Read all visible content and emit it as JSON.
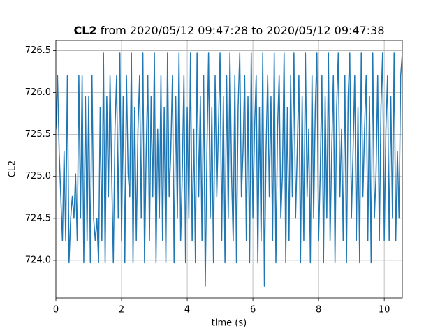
{
  "chart_data": {
    "type": "line",
    "title_parts": [
      "CL2",
      "from 2020/05/12 09:47:28 to 2020/05/12 09:47:38"
    ],
    "x_label": "time (s)",
    "y_label": "CL2",
    "color": "#1f77b4",
    "grid": true,
    "xlim": [
      0,
      10.55
    ],
    "xticks": [
      0,
      2,
      4,
      6,
      8,
      10
    ],
    "ylim": [
      723.55,
      726.62
    ],
    "yticks": [
      {
        "value": 724,
        "label": "724.0"
      },
      {
        "value": 724.5,
        "label": "724.5"
      },
      {
        "value": 725,
        "label": "725.0"
      },
      {
        "value": 725.5,
        "label": "725.5"
      },
      {
        "value": 726,
        "label": "726.0"
      },
      {
        "value": 726.5,
        "label": "726.5"
      }
    ],
    "x": [
      0,
      0.05,
      0.1,
      0.15,
      0.2,
      0.25,
      0.3,
      0.35,
      0.4,
      0.45,
      0.5,
      0.55,
      0.6,
      0.65,
      0.7,
      0.75,
      0.8,
      0.85,
      0.9,
      0.95,
      1,
      1.05,
      1.1,
      1.15,
      1.2,
      1.25,
      1.3,
      1.35,
      1.4,
      1.45,
      1.5,
      1.55,
      1.6,
      1.65,
      1.7,
      1.75,
      1.8,
      1.85,
      1.9,
      1.95,
      2,
      2.05,
      2.1,
      2.15,
      2.2,
      2.25,
      2.3,
      2.35,
      2.4,
      2.45,
      2.5,
      2.55,
      2.6,
      2.65,
      2.7,
      2.75,
      2.8,
      2.85,
      2.9,
      2.95,
      3,
      3.05,
      3.1,
      3.15,
      3.2,
      3.25,
      3.3,
      3.35,
      3.4,
      3.45,
      3.5,
      3.55,
      3.6,
      3.65,
      3.7,
      3.75,
      3.8,
      3.85,
      3.9,
      3.95,
      4,
      4.05,
      4.1,
      4.15,
      4.2,
      4.25,
      4.3,
      4.35,
      4.4,
      4.45,
      4.5,
      4.55,
      4.6,
      4.65,
      4.7,
      4.75,
      4.8,
      4.85,
      4.9,
      4.95,
      5,
      5.05,
      5.1,
      5.15,
      5.2,
      5.25,
      5.3,
      5.35,
      5.4,
      5.45,
      5.5,
      5.55,
      5.6,
      5.65,
      5.7,
      5.75,
      5.8,
      5.85,
      5.9,
      5.95,
      6,
      6.05,
      6.1,
      6.15,
      6.2,
      6.25,
      6.3,
      6.35,
      6.4,
      6.45,
      6.5,
      6.55,
      6.6,
      6.65,
      6.7,
      6.75,
      6.8,
      6.85,
      6.9,
      6.95,
      7,
      7.05,
      7.1,
      7.15,
      7.2,
      7.25,
      7.3,
      7.35,
      7.4,
      7.45,
      7.5,
      7.55,
      7.6,
      7.65,
      7.7,
      7.75,
      7.8,
      7.85,
      7.9,
      7.95,
      8,
      8.05,
      8.1,
      8.15,
      8.2,
      8.25,
      8.3,
      8.35,
      8.4,
      8.45,
      8.5,
      8.55,
      8.6,
      8.65,
      8.7,
      8.75,
      8.8,
      8.85,
      8.9,
      8.95,
      9,
      9.05,
      9.1,
      9.15,
      9.2,
      9.25,
      9.3,
      9.35,
      9.4,
      9.45,
      9.5,
      9.55,
      9.6,
      9.65,
      9.7,
      9.75,
      9.8,
      9.85,
      9.9,
      9.95,
      10,
      10.05,
      10.1,
      10.15,
      10.2,
      10.25,
      10.3,
      10.35,
      10.4,
      10.45,
      10.5,
      10.55
    ],
    "values": [
      725.56,
      726.2,
      725.3,
      724.76,
      724.23,
      725.3,
      724.23,
      726.2,
      723.97,
      724.5,
      724.76,
      724.5,
      725.03,
      724.23,
      726.2,
      724.5,
      726.2,
      723.97,
      725.95,
      724.23,
      725.95,
      723.97,
      726.2,
      724.5,
      724.23,
      724.5,
      723.97,
      725.82,
      724.23,
      726.47,
      723.97,
      725.95,
      724.76,
      726.2,
      725.03,
      723.97,
      725.56,
      726.2,
      724.5,
      726.47,
      724.23,
      725.95,
      723.97,
      726.2,
      725.03,
      724.76,
      726.47,
      723.97,
      725.82,
      724.23,
      725.56,
      726.2,
      724.5,
      726.47,
      723.97,
      725.3,
      726.2,
      724.23,
      725.95,
      724.76,
      726.47,
      723.97,
      725.56,
      724.5,
      726.2,
      724.23,
      725.82,
      723.97,
      726.47,
      724.76,
      725.3,
      726.2,
      723.97,
      725.95,
      724.5,
      726.47,
      724.23,
      725.03,
      726.2,
      723.97,
      725.82,
      724.5,
      726.47,
      724.23,
      725.56,
      723.97,
      726.47,
      724.76,
      725.95,
      724.23,
      726.2,
      723.69,
      725.3,
      726.47,
      724.5,
      725.82,
      723.97,
      726.2,
      724.76,
      725.56,
      726.47,
      724.23,
      725.95,
      723.97,
      726.2,
      724.5,
      726.47,
      725.03,
      724.23,
      726.2,
      723.97,
      725.82,
      726.47,
      724.76,
      725.3,
      726.2,
      724.23,
      725.95,
      723.97,
      726.47,
      724.5,
      725.56,
      726.2,
      723.97,
      725.82,
      724.23,
      726.47,
      723.69,
      725.3,
      726.2,
      724.76,
      725.95,
      724.23,
      726.47,
      723.97,
      725.56,
      726.2,
      724.5,
      725.03,
      726.47,
      723.97,
      725.82,
      724.23,
      726.2,
      724.76,
      726.47,
      724.5,
      725.3,
      726.2,
      723.97,
      725.95,
      724.23,
      726.47,
      724.76,
      725.56,
      723.97,
      726.2,
      724.5,
      725.82,
      726.47,
      724.23,
      725.03,
      726.2,
      723.97,
      725.95,
      724.5,
      726.47,
      724.23,
      725.3,
      726.2,
      723.97,
      725.82,
      726.47,
      724.76,
      725.56,
      724.23,
      726.2,
      723.97,
      725.95,
      726.47,
      724.5,
      725.3,
      726.2,
      724.23,
      725.82,
      723.97,
      726.47,
      724.76,
      725.56,
      726.2,
      724.23,
      725.95,
      723.97,
      726.47,
      724.5,
      725.03,
      726.2,
      724.23,
      725.82,
      726.47,
      724.23,
      725.56,
      726.2,
      724.23,
      725.95,
      724.5,
      726.47,
      724.23,
      725.3,
      724.5,
      726.2,
      726.47
    ]
  }
}
